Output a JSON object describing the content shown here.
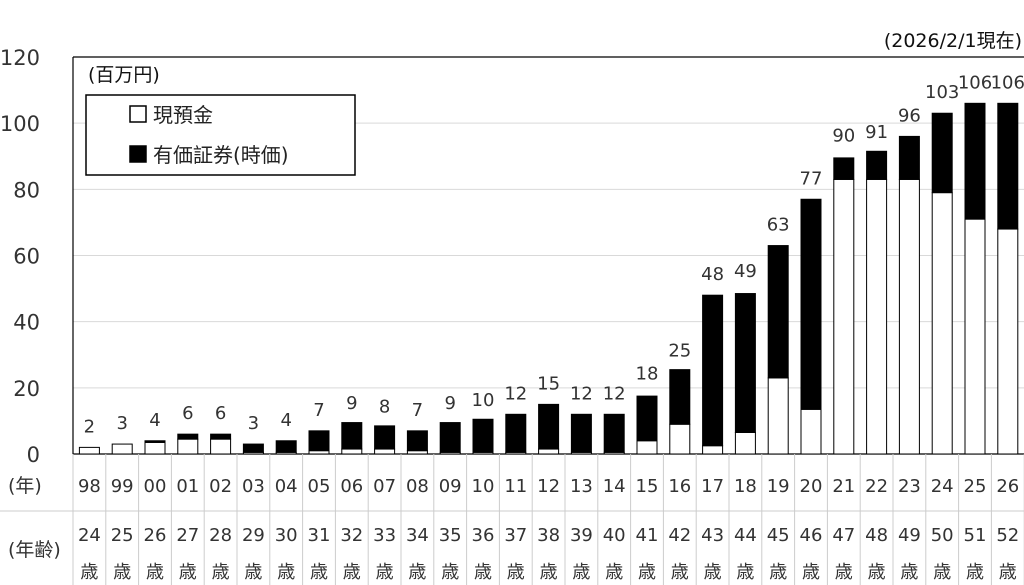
{
  "chart_data": {
    "type": "bar",
    "stacked": true,
    "as_of": "(2026/2/1現在)",
    "unit_label": "(百万円)",
    "ylim": [
      0,
      120
    ],
    "yticks": [
      0,
      20,
      40,
      60,
      80,
      100,
      120
    ],
    "grid": true,
    "legend_position": "top-left",
    "categories": [
      "98",
      "99",
      "00",
      "01",
      "02",
      "03",
      "04",
      "05",
      "06",
      "07",
      "08",
      "09",
      "10",
      "11",
      "12",
      "13",
      "14",
      "15",
      "16",
      "17",
      "18",
      "19",
      "20",
      "21",
      "22",
      "23",
      "24",
      "25",
      "26"
    ],
    "ages": [
      "24",
      "25",
      "26",
      "27",
      "28",
      "29",
      "30",
      "31",
      "32",
      "33",
      "34",
      "35",
      "36",
      "37",
      "38",
      "39",
      "40",
      "41",
      "42",
      "43",
      "44",
      "45",
      "46",
      "47",
      "48",
      "49",
      "50",
      "51",
      "52"
    ],
    "age_suffix": "歳",
    "row_label_year": "(年)",
    "row_label_age": "(年齢)",
    "series": [
      {
        "name": "現預金",
        "color": "#ffffff",
        "values": [
          2,
          3,
          3.5,
          4.5,
          4.5,
          0.5,
          0.5,
          1,
          1.5,
          1.5,
          1,
          0.5,
          0.5,
          0.5,
          1.5,
          0.5,
          0.5,
          4,
          9,
          2.5,
          6.5,
          23,
          13.5,
          83,
          83,
          83,
          79,
          71,
          68
        ]
      },
      {
        "name": "有価証券(時価)",
        "color": "#000000",
        "values": [
          0,
          0,
          0.5,
          1.5,
          1.5,
          2.5,
          3.5,
          6,
          8,
          7,
          6,
          9,
          10,
          11.5,
          13.5,
          11.5,
          11.5,
          13.5,
          16.5,
          45.5,
          42,
          40,
          63.5,
          6.5,
          8.5,
          13,
          24,
          35,
          38
        ]
      }
    ],
    "totals": [
      2,
      3,
      4,
      6,
      6,
      3,
      4,
      7,
      9,
      8,
      7,
      9,
      10,
      12,
      15,
      12,
      12,
      18,
      25,
      48,
      49,
      63,
      77,
      90,
      91,
      96,
      103,
      106,
      106
    ]
  }
}
